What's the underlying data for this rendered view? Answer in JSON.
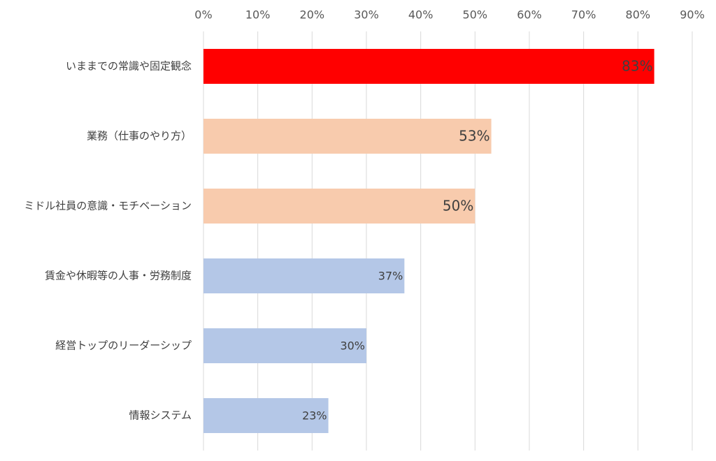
{
  "chart_data": {
    "type": "bar",
    "orientation": "horizontal",
    "categories": [
      "いままでの常識や固定観念",
      "業務（仕事のやり方）",
      "ミドル社員の意識・モチベーション",
      "賃金や休暇等の人事・労務制度",
      "経営トップのリーダーシップ",
      "情報システム"
    ],
    "values": [
      83,
      53,
      50,
      37,
      30,
      23
    ],
    "data_labels": [
      "83%",
      "53%",
      "50%",
      "37%",
      "30%",
      "23%"
    ],
    "bar_colors": [
      "#ff0000",
      "#f8cbad",
      "#f8cbad",
      "#b4c7e7",
      "#b4c7e7",
      "#b4c7e7"
    ],
    "label_colors": [
      "#ffffff",
      "#404040",
      "#404040",
      "#404040",
      "#404040",
      "#404040"
    ],
    "x_ticks": [
      0,
      10,
      20,
      30,
      40,
      50,
      60,
      70,
      80,
      90
    ],
    "x_tick_labels": [
      "0%",
      "10%",
      "20%",
      "30%",
      "40%",
      "50%",
      "60%",
      "70%",
      "80%",
      "90%"
    ],
    "xlim": [
      0,
      90
    ],
    "x_axis_position": "top",
    "grid": true,
    "title": "",
    "xlabel": "",
    "ylabel": ""
  }
}
